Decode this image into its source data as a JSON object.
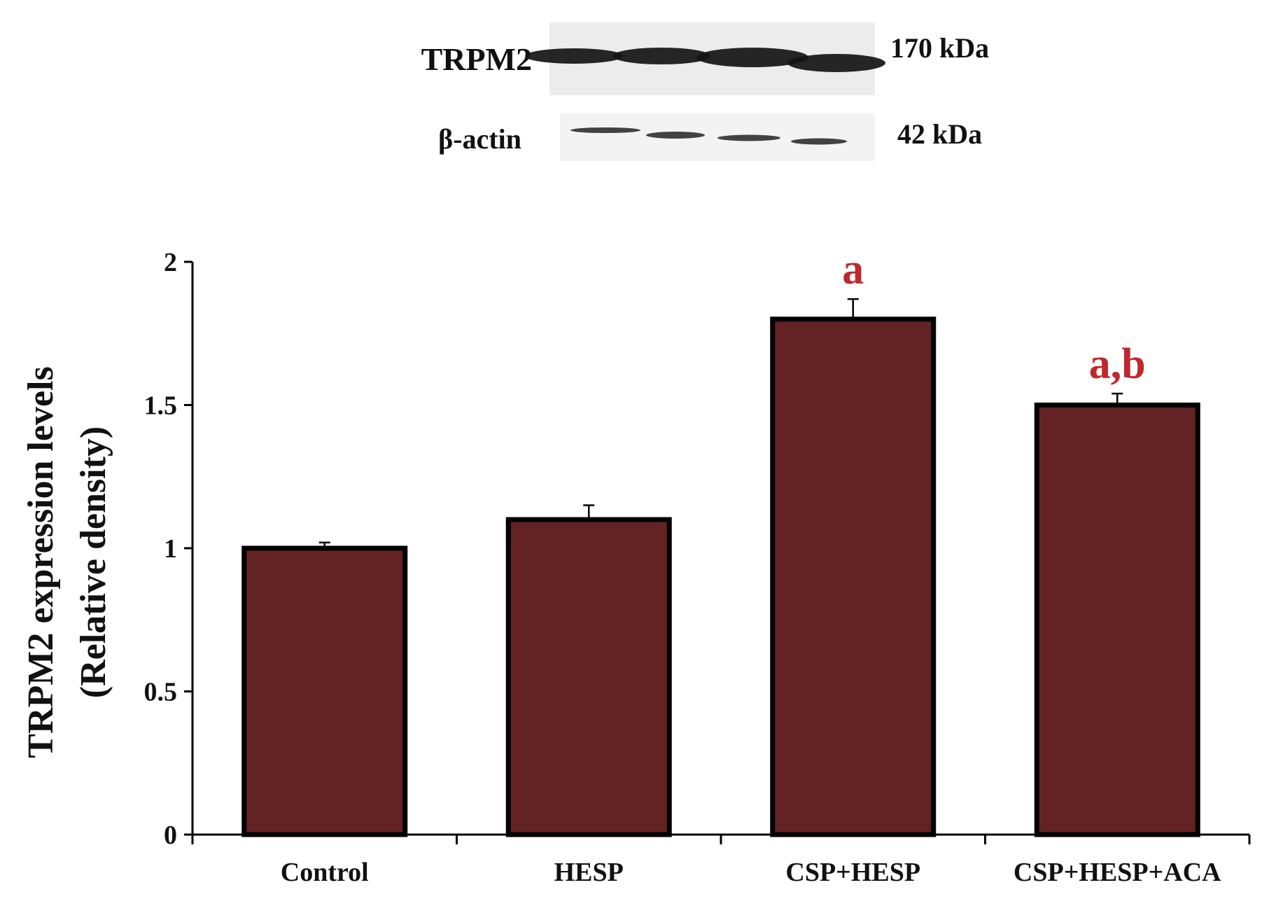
{
  "blot": {
    "rows": [
      {
        "protein": "TRPM2",
        "mw": "170 kDa",
        "lanes": 4
      },
      {
        "protein": "β-actin",
        "mw": "42 kDa",
        "lanes": 4
      }
    ]
  },
  "chart_data": {
    "type": "bar",
    "categories": [
      "Control",
      "HESP",
      "CSP+HESP",
      "CSP+HESP+ACA"
    ],
    "values": [
      1.0,
      1.1,
      1.8,
      1.5
    ],
    "errors": [
      0.02,
      0.05,
      0.07,
      0.04
    ],
    "significance": [
      "",
      "",
      "a",
      "a,b"
    ],
    "title": "",
    "xlabel": "",
    "ylabel": "TRPM2 expression levels",
    "ylabel2": "(Relative density)",
    "ylim": [
      0,
      2
    ],
    "yticks": [
      0,
      0.5,
      1,
      1.5,
      2
    ],
    "ytick_labels": [
      "0",
      "0.5",
      "1",
      "1.5",
      "2"
    ],
    "grid": false,
    "colors": {
      "bar": "#632224",
      "bar_edge": "#000000",
      "significance": "#c0282d"
    }
  }
}
